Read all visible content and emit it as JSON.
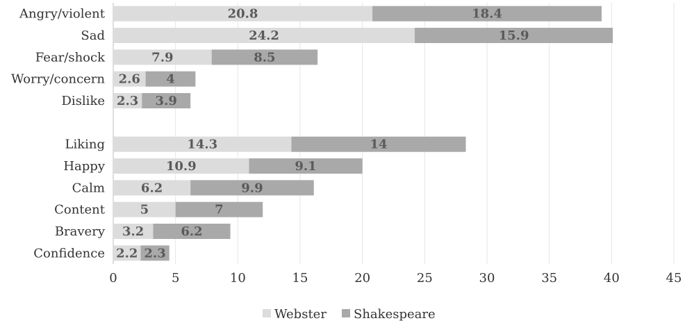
{
  "chart_data": {
    "type": "bar",
    "orientation": "horizontal",
    "stacked": true,
    "categories": [
      "Angry/violent",
      "Sad",
      "Fear/shock",
      "Worry/concern",
      "Dislike",
      "",
      "Liking",
      "Happy",
      "Calm",
      "Content",
      "Bravery",
      "Confidence"
    ],
    "series": [
      {
        "name": "Webster",
        "values": [
          20.8,
          24.2,
          7.9,
          2.6,
          2.3,
          null,
          14.3,
          10.9,
          6.2,
          5,
          3.2,
          2.2
        ],
        "color": "#dcdcdc"
      },
      {
        "name": "Shakespeare",
        "values": [
          18.4,
          15.9,
          8.5,
          4,
          3.9,
          null,
          14,
          9.1,
          9.9,
          7,
          6.2,
          2.3
        ],
        "color": "#a9a9a9"
      }
    ],
    "xlim": [
      0,
      45
    ],
    "xticks": [
      0,
      5,
      10,
      15,
      20,
      25,
      30,
      35,
      40,
      45
    ],
    "grid": "vertical",
    "legend": "bottom-center",
    "colors": {
      "gridline": "#e6e6e6",
      "label": "#5a5a5a",
      "text": "#333333"
    }
  }
}
